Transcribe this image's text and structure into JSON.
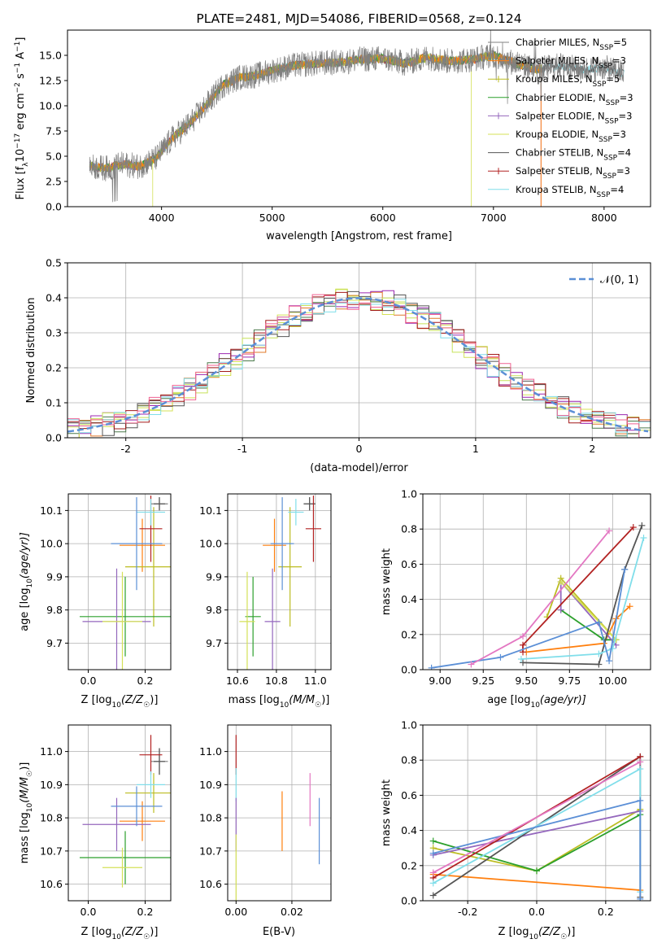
{
  "colors": {
    "CM": "#808080",
    "SM": "#ff7f0e",
    "KM": "#bcbd22",
    "CE": "#2ca02c",
    "SE": "#9467bd",
    "KE": "#d4e157",
    "CS": "#555555",
    "SS": "#b22222",
    "KS": "#80deea",
    "ref": "#5b8fd6"
  },
  "chart_data": [
    {
      "id": "spectrum",
      "type": "line",
      "title": "PLATE=2481, MJD=54086, FIBERID=0568, z=0.124",
      "xlabel": "wavelength [Angstrom, rest frame]",
      "ylabel_parts": {
        "a": "Flux [f",
        "sub": "λ",
        "b": "10",
        "sup1": "−17",
        "c": " erg cm",
        "sup2": "−2",
        "d": " s",
        "sup3": "−1",
        "e": " A",
        "sup4": "−1",
        "f": "]"
      },
      "xlim": [
        3150,
        8420
      ],
      "ylim": [
        0,
        17.5
      ],
      "xticks": [
        4000,
        5000,
        6000,
        7000,
        8000
      ],
      "yticks": [
        0.0,
        2.5,
        5.0,
        7.5,
        10.0,
        12.5,
        15.0
      ],
      "grid": false,
      "legend_position": "right",
      "continuum": {
        "x": [
          3350,
          3500,
          3650,
          3800,
          3950,
          4100,
          4250,
          4400,
          4550,
          4700,
          4850,
          5000,
          5200,
          5400,
          5600,
          5800,
          6000,
          6200,
          6400,
          6600,
          6800,
          7000,
          7200,
          7400,
          7600,
          7800,
          8000,
          8180
        ],
        "y": [
          4.0,
          3.8,
          4.2,
          4.0,
          4.8,
          6.8,
          8.2,
          10.0,
          12.0,
          12.8,
          13.0,
          13.5,
          14.0,
          14.2,
          14.3,
          14.6,
          14.7,
          14.2,
          14.8,
          14.4,
          14.6,
          15.0,
          14.2,
          13.6,
          14.0,
          13.6,
          13.8,
          13.2
        ]
      },
      "series": [
        {
          "key": "CM",
          "legend": {
            "name": "Chabrier MILES, N",
            "sub": "SSP",
            "val": "=5"
          }
        },
        {
          "key": "SM",
          "legend": {
            "name": "Salpeter MILES, N",
            "sub": "SSP",
            "val": "=3"
          }
        },
        {
          "key": "KM",
          "legend": {
            "name": "Kroupa MILES, N",
            "sub": "SSP",
            "val": "=5"
          }
        },
        {
          "key": "CE",
          "legend": {
            "name": "Chabrier ELODIE, N",
            "sub": "SSP",
            "val": "=3"
          }
        },
        {
          "key": "SE",
          "legend": {
            "name": "Salpeter ELODIE, N",
            "sub": "SSP",
            "val": "=3"
          }
        },
        {
          "key": "KE",
          "legend": {
            "name": "Kroupa ELODIE, N",
            "sub": "SSP",
            "val": "=3"
          }
        },
        {
          "key": "CS",
          "legend": {
            "name": "Chabrier STELIB, N",
            "sub": "SSP",
            "val": "=4"
          }
        },
        {
          "key": "SS",
          "legend": {
            "name": "Salpeter STELIB, N",
            "sub": "SSP",
            "val": "=3"
          }
        },
        {
          "key": "KS",
          "legend": {
            "name": "Kroupa STELIB, N",
            "sub": "SSP",
            "val": "=4"
          }
        }
      ]
    },
    {
      "id": "histogram",
      "type": "bar",
      "xlabel": "(data-model)/error",
      "ylabel": "Normed distribution",
      "xlim": [
        -2.5,
        2.5
      ],
      "ylim": [
        0,
        0.5
      ],
      "xticks": [
        -2,
        -1,
        0,
        1,
        2
      ],
      "yticks": [
        0.0,
        0.1,
        0.2,
        0.3,
        0.4,
        0.5
      ],
      "grid": true,
      "legend_position": "top-right",
      "reference": {
        "name": "𝒩(0, 1)",
        "mean": 0,
        "sigma": 1
      },
      "bin_width": 0.1
    },
    {
      "id": "age-vs-Z",
      "type": "scatter",
      "xlabel_parts": {
        "a": "Z [log",
        "sub": "10",
        "b": "(Z/Z",
        "sub2": "☉",
        "c": ")]"
      },
      "ylabel_parts": {
        "a": "age  [log",
        "sub": "10",
        "b": "(age/yr)]"
      },
      "xlim": [
        -0.07,
        0.29
      ],
      "ylim": [
        9.62,
        10.15
      ],
      "xticks": [
        0.0,
        0.2
      ],
      "yticks": [
        9.7,
        9.8,
        9.9,
        10.0,
        10.1
      ],
      "grid": true,
      "points": [
        {
          "key": "CM",
          "x": 0.25,
          "y": 10.12,
          "xerr": 0.03,
          "yerr": 0.02
        },
        {
          "key": "SM",
          "x": 0.19,
          "y": 9.995,
          "xerr": 0.08,
          "yerr": 0.08
        },
        {
          "key": "KM",
          "x": 0.23,
          "y": 9.93,
          "xerr": 0.1,
          "yerr": 0.18
        },
        {
          "key": "CE",
          "x": 0.13,
          "y": 9.78,
          "xerr": 0.16,
          "yerr": 0.12
        },
        {
          "key": "SE",
          "x": 0.1,
          "y": 9.765,
          "xerr": 0.12,
          "yerr": 0.16
        },
        {
          "key": "KE",
          "x": 0.12,
          "y": 9.765,
          "xerr": 0.07,
          "yerr": 0.15
        },
        {
          "key": "CS",
          "x": 0.25,
          "y": 10.12,
          "xerr": 0.02,
          "yerr": 0.02
        },
        {
          "key": "SS",
          "x": 0.22,
          "y": 10.045,
          "xerr": 0.04,
          "yerr": 0.1
        },
        {
          "key": "KS",
          "x": 0.22,
          "y": 10.095,
          "xerr": 0.05,
          "yerr": 0.04
        },
        {
          "key": "ref",
          "x": 0.17,
          "y": 10.0,
          "xerr": 0.09,
          "yerr": 0.14
        }
      ]
    },
    {
      "id": "age-vs-mass",
      "type": "scatter",
      "xlabel_parts": {
        "a": "mass [log",
        "sub": "10",
        "b": "(M/M",
        "sub2": "☉",
        "c": ")]"
      },
      "xlim": [
        10.55,
        11.08
      ],
      "ylim": [
        9.62,
        10.15
      ],
      "xticks": [
        10.6,
        10.8,
        11.0
      ],
      "yticks": [
        9.7,
        9.8,
        9.9,
        10.0,
        10.1
      ],
      "grid": true,
      "points": [
        {
          "key": "CM",
          "x": 10.97,
          "y": 10.12,
          "xerr": 0.03,
          "yerr": 0.02
        },
        {
          "key": "SM",
          "x": 10.79,
          "y": 9.995,
          "xerr": 0.06,
          "yerr": 0.08
        },
        {
          "key": "KM",
          "x": 10.87,
          "y": 9.93,
          "xerr": 0.06,
          "yerr": 0.18
        },
        {
          "key": "CE",
          "x": 10.68,
          "y": 9.78,
          "xerr": 0.04,
          "yerr": 0.12
        },
        {
          "key": "SE",
          "x": 10.78,
          "y": 9.765,
          "xerr": 0.04,
          "yerr": 0.16
        },
        {
          "key": "KE",
          "x": 10.65,
          "y": 9.765,
          "xerr": 0.04,
          "yerr": 0.15
        },
        {
          "key": "CS",
          "x": 10.97,
          "y": 10.12,
          "xerr": 0.03,
          "yerr": 0.02
        },
        {
          "key": "SS",
          "x": 10.99,
          "y": 10.045,
          "xerr": 0.04,
          "yerr": 0.1
        },
        {
          "key": "KS",
          "x": 10.9,
          "y": 10.095,
          "xerr": 0.04,
          "yerr": 0.04
        },
        {
          "key": "ref",
          "x": 10.83,
          "y": 10.0,
          "xerr": 0.06,
          "yerr": 0.14
        }
      ]
    },
    {
      "id": "weight-vs-age",
      "type": "line",
      "xlabel_parts": {
        "a": "age  [log",
        "sub": "10",
        "b": "(age/yr)]"
      },
      "ylabel": "mass weight",
      "xlim": [
        8.9,
        10.22
      ],
      "ylim": [
        0,
        1.0
      ],
      "xticks": [
        9.0,
        9.25,
        9.5,
        9.75,
        10.0
      ],
      "yticks": [
        0.0,
        0.2,
        0.4,
        0.6,
        0.8,
        1.0
      ],
      "grid": true,
      "series": [
        {
          "key": "SM",
          "x": [
            9.5,
            9.95,
            10.02,
            10.1
          ],
          "y": [
            0.1,
            0.15,
            0.29,
            0.36
          ]
        },
        {
          "key": "KM",
          "x": [
            9.62,
            9.7,
            10.02
          ],
          "y": [
            0.3,
            0.52,
            0.17
          ]
        },
        {
          "key": "CE",
          "x": [
            9.7,
            9.95,
            10.02
          ],
          "y": [
            0.34,
            0.17,
            0.17
          ]
        },
        {
          "key": "SE",
          "x": [
            9.7,
            9.7,
            10.02
          ],
          "y": [
            0.34,
            0.5,
            0.14
          ]
        },
        {
          "key": "KE",
          "x": [
            9.7,
            10.02
          ],
          "y": [
            0.5,
            0.17
          ]
        },
        {
          "key": "CS",
          "x": [
            9.48,
            9.92,
            10.07,
            10.17
          ],
          "y": [
            0.04,
            0.03,
            0.57,
            0.82
          ]
        },
        {
          "key": "SS",
          "x": [
            9.48,
            9.48,
            10.12
          ],
          "y": [
            0.1,
            0.14,
            0.81
          ]
        },
        {
          "key": "KS",
          "x": [
            9.47,
            9.92,
            10.0,
            10.18
          ],
          "y": [
            0.06,
            0.09,
            0.12,
            0.75
          ]
        },
        {
          "key": "ref",
          "x": [
            8.95,
            9.35,
            9.92,
            9.98,
            10.07
          ],
          "y": [
            0.01,
            0.07,
            0.27,
            0.05,
            0.57
          ]
        },
        {
          "key": "pink",
          "x": [
            9.18,
            9.48,
            9.98
          ],
          "y": [
            0.03,
            0.19,
            0.79
          ]
        }
      ]
    },
    {
      "id": "mass-vs-Z",
      "type": "scatter",
      "xlabel_parts": {
        "a": "Z [log",
        "sub": "10",
        "b": "(Z/Z",
        "sub2": "☉",
        "c": ")]"
      },
      "ylabel_parts": {
        "a": "mass [log",
        "sub": "10",
        "b": "(M/M",
        "sub2": "☉",
        "c": ")]"
      },
      "xlim": [
        -0.07,
        0.29
      ],
      "ylim": [
        10.55,
        11.08
      ],
      "xticks": [
        0.0,
        0.2
      ],
      "yticks": [
        10.6,
        10.7,
        10.8,
        10.9,
        11.0
      ],
      "grid": true,
      "points": [
        {
          "key": "CM",
          "x": 0.25,
          "y": 10.97,
          "xerr": 0.03,
          "yerr": 0.04
        },
        {
          "key": "SM",
          "x": 0.19,
          "y": 10.79,
          "xerr": 0.08,
          "yerr": 0.06
        },
        {
          "key": "KM",
          "x": 0.23,
          "y": 10.875,
          "xerr": 0.1,
          "yerr": 0.06
        },
        {
          "key": "CE",
          "x": 0.13,
          "y": 10.68,
          "xerr": 0.16,
          "yerr": 0.08
        },
        {
          "key": "SE",
          "x": 0.1,
          "y": 10.78,
          "xerr": 0.12,
          "yerr": 0.08
        },
        {
          "key": "KE",
          "x": 0.12,
          "y": 10.65,
          "xerr": 0.07,
          "yerr": 0.06
        },
        {
          "key": "CS",
          "x": 0.25,
          "y": 10.97,
          "xerr": 0.02,
          "yerr": 0.04
        },
        {
          "key": "SS",
          "x": 0.22,
          "y": 10.99,
          "xerr": 0.04,
          "yerr": 0.06
        },
        {
          "key": "KS",
          "x": 0.22,
          "y": 10.9,
          "xerr": 0.05,
          "yerr": 0.04
        },
        {
          "key": "ref",
          "x": 0.17,
          "y": 10.835,
          "xerr": 0.09,
          "yerr": 0.06
        }
      ]
    },
    {
      "id": "mass-vs-ebv",
      "type": "scatter",
      "xlabel": "E(B-V)",
      "xlim": [
        -0.003,
        0.034
      ],
      "ylim": [
        10.55,
        11.08
      ],
      "xticks": [
        0.0,
        0.02
      ],
      "yticks": [
        10.6,
        10.7,
        10.8,
        10.9,
        11.0
      ],
      "grid": true,
      "points": [
        {
          "key": "SS",
          "x": 0.0,
          "y": 10.99,
          "yerr": 0.06
        },
        {
          "key": "KS",
          "x": 0.0,
          "y": 10.9,
          "yerr": 0.05
        },
        {
          "key": "SE",
          "x": 0.0,
          "y": 10.78,
          "yerr": 0.08
        },
        {
          "key": "KE",
          "x": 0.0,
          "y": 10.65,
          "yerr": 0.1
        },
        {
          "key": "SM",
          "x": 0.0165,
          "y": 10.79,
          "yerr": 0.09
        },
        {
          "key": "pink",
          "x": 0.0265,
          "y": 10.855,
          "yerr": 0.08
        },
        {
          "key": "ref",
          "x": 0.0298,
          "y": 10.76,
          "yerr": 0.1
        }
      ]
    },
    {
      "id": "weight-vs-Z",
      "type": "line",
      "xlabel_parts": {
        "a": "Z [log",
        "sub": "10",
        "b": "(Z/Z",
        "sub2": "☉",
        "c": ")]"
      },
      "ylabel": "mass weight",
      "xlim": [
        -0.33,
        0.33
      ],
      "ylim": [
        0,
        1.0
      ],
      "xticks": [
        -0.2,
        0.0,
        0.2
      ],
      "yticks": [
        0.0,
        0.2,
        0.4,
        0.6,
        0.8,
        1.0
      ],
      "grid": true,
      "series": [
        {
          "key": "SM",
          "x": [
            -0.3,
            0.3
          ],
          "y": [
            0.15,
            0.06
          ]
        },
        {
          "key": "KM",
          "x": [
            -0.3,
            0.0,
            0.3
          ],
          "y": [
            0.3,
            0.17,
            0.52
          ]
        },
        {
          "key": "CE",
          "x": [
            -0.3,
            0.0,
            0.3
          ],
          "y": [
            0.34,
            0.17,
            0.49
          ]
        },
        {
          "key": "SE",
          "x": [
            -0.3,
            0.3
          ],
          "y": [
            0.26,
            0.51
          ]
        },
        {
          "key": "CS",
          "x": [
            -0.3,
            0.3,
            0.3
          ],
          "y": [
            0.03,
            0.82,
            0.02
          ]
        },
        {
          "key": "SS",
          "x": [
            -0.3,
            0.3
          ],
          "y": [
            0.13,
            0.82
          ]
        },
        {
          "key": "KS",
          "x": [
            -0.3,
            0.3,
            0.3
          ],
          "y": [
            0.1,
            0.75,
            0.05
          ]
        },
        {
          "key": "ref",
          "x": [
            -0.3,
            0.3,
            0.3
          ],
          "y": [
            0.27,
            0.57,
            0.01
          ]
        },
        {
          "key": "pink",
          "x": [
            -0.3,
            0.3
          ],
          "y": [
            0.16,
            0.79
          ]
        }
      ]
    }
  ]
}
